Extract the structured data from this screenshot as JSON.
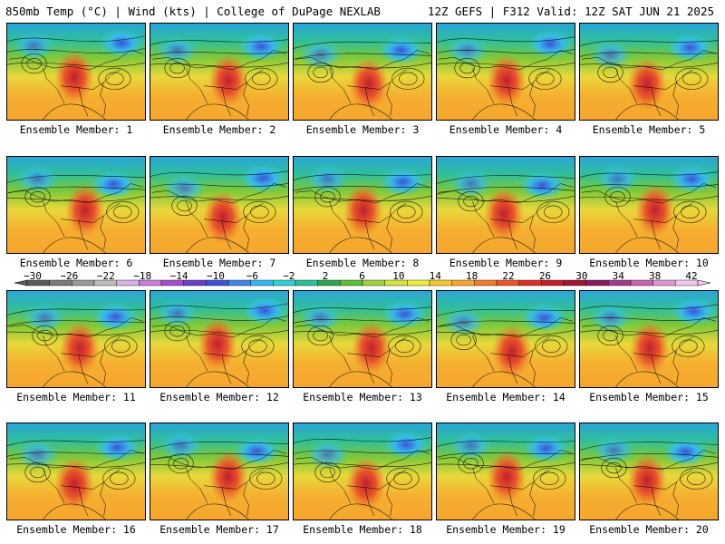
{
  "header": {
    "left_title": "850mb Temp (°C) | Wind (kts) | College of DuPage NEXLAB",
    "right_title": "12Z GEFS | F312 Valid: 12Z SAT JUN 21 2025"
  },
  "panels": [
    {
      "label": "Ensemble Member: 1"
    },
    {
      "label": "Ensemble Member: 2"
    },
    {
      "label": "Ensemble Member: 3"
    },
    {
      "label": "Ensemble Member: 4"
    },
    {
      "label": "Ensemble Member: 5"
    },
    {
      "label": "Ensemble Member: 6"
    },
    {
      "label": "Ensemble Member: 7"
    },
    {
      "label": "Ensemble Member: 8"
    },
    {
      "label": "Ensemble Member: 9"
    },
    {
      "label": "Ensemble Member: 10"
    },
    {
      "label": "Ensemble Member: 11"
    },
    {
      "label": "Ensemble Member: 12"
    },
    {
      "label": "Ensemble Member: 13"
    },
    {
      "label": "Ensemble Member: 14"
    },
    {
      "label": "Ensemble Member: 15"
    },
    {
      "label": "Ensemble Member: 16"
    },
    {
      "label": "Ensemble Member: 17"
    },
    {
      "label": "Ensemble Member: 18"
    },
    {
      "label": "Ensemble Member: 19"
    },
    {
      "label": "Ensemble Member: 20"
    }
  ],
  "colorbar": {
    "tick_labels": [
      "−30",
      "−26",
      "−22",
      "−18",
      "−14",
      "−10",
      "−6",
      "−2",
      "2",
      "6",
      "10",
      "14",
      "18",
      "22",
      "26",
      "30",
      "34",
      "38",
      "42"
    ],
    "colors": [
      "#5a5a5a",
      "#7a7a7a",
      "#9a9a9a",
      "#bdbdbd",
      "#d6b3e6",
      "#c77ddb",
      "#a64dc9",
      "#6a3fc9",
      "#3b55d6",
      "#3f86e6",
      "#38b6ee",
      "#33d1d1",
      "#2bbf9a",
      "#2da64f",
      "#5cbf3a",
      "#9bd43a",
      "#d4e63a",
      "#f0ea3a",
      "#f5c832",
      "#f5a62e",
      "#f07d2a",
      "#e8552a",
      "#d9302b",
      "#c01f2f",
      "#9e1734",
      "#871c5c",
      "#a23a8e",
      "#c465b3",
      "#dd96d3",
      "#f0c6ec"
    ]
  }
}
